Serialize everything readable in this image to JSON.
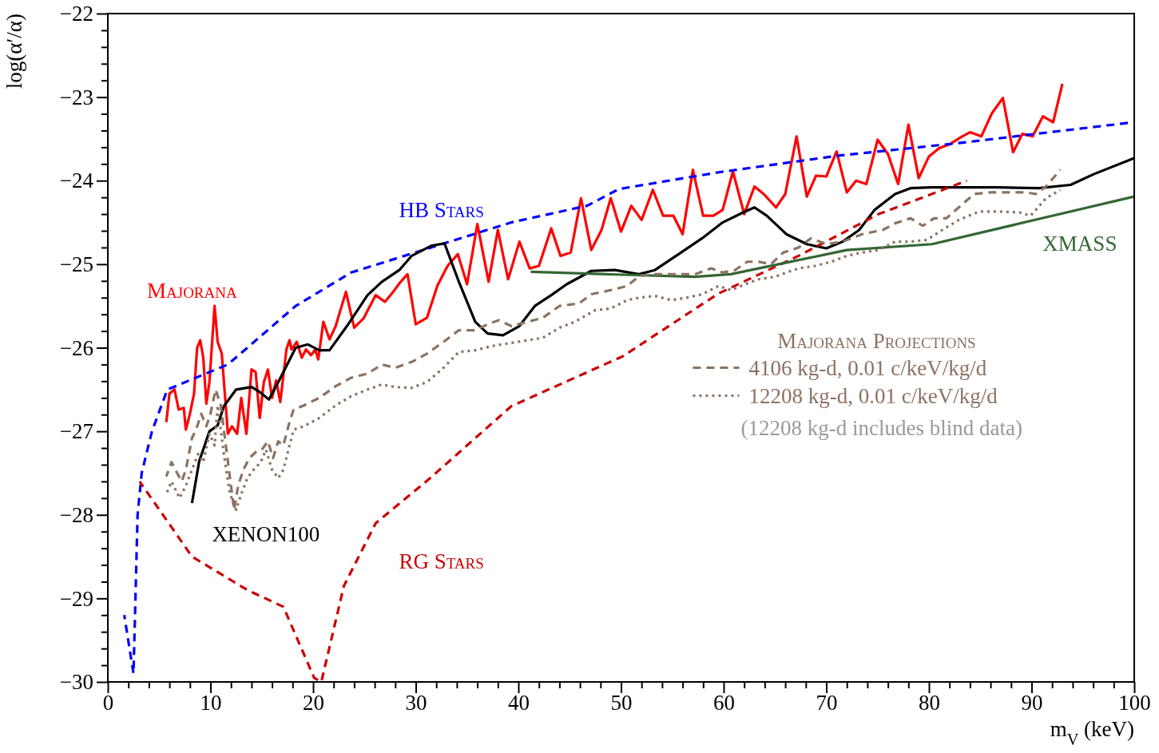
{
  "chart_data": {
    "type": "line",
    "xlabel": "m$_{V}$ (keV)",
    "ylabel": "log(α′/α)",
    "legend_title": "Majorana Projections",
    "legend": "right",
    "grid": false,
    "xlim": [
      0,
      100
    ],
    "ylim": [
      -30,
      -22
    ],
    "xticks": [
      0,
      {
        "value": 2,
        "label": null
      },
      {
        "value": 4,
        "label": null
      },
      {
        "value": 6,
        "label": null
      },
      {
        "value": 8,
        "label": null
      },
      10,
      {
        "value": 12,
        "label": null
      },
      {
        "value": 14,
        "label": null
      },
      {
        "value": 16,
        "label": null
      },
      {
        "value": 18,
        "label": null
      },
      20,
      {
        "value": 22,
        "label": null
      },
      {
        "value": 24,
        "label": null
      },
      {
        "value": 26,
        "label": null
      },
      {
        "value": 28,
        "label": null
      },
      30,
      {
        "value": 32,
        "label": null
      },
      {
        "value": 34,
        "label": null
      },
      {
        "value": 36,
        "label": null
      },
      {
        "value": 38,
        "label": null
      },
      40,
      {
        "value": 42,
        "label": null
      },
      {
        "value": 44,
        "label": null
      },
      {
        "value": 46,
        "label": null
      },
      {
        "value": 48,
        "label": null
      },
      50,
      {
        "value": 52,
        "label": null
      },
      {
        "value": 54,
        "label": null
      },
      {
        "value": 56,
        "label": null
      },
      {
        "value": 58,
        "label": null
      },
      60,
      {
        "value": 62,
        "label": null
      },
      {
        "value": 64,
        "label": null
      },
      {
        "value": 66,
        "label": null
      },
      {
        "value": 68,
        "label": null
      },
      70,
      {
        "value": 72,
        "label": null
      },
      {
        "value": 74,
        "label": null
      },
      {
        "value": 76,
        "label": null
      },
      {
        "value": 78,
        "label": null
      },
      80,
      {
        "value": 82,
        "label": null
      },
      {
        "value": 84,
        "label": null
      },
      {
        "value": 86,
        "label": null
      },
      {
        "value": 88,
        "label": null
      },
      90,
      {
        "value": 92,
        "label": null
      },
      {
        "value": 94,
        "label": null
      },
      {
        "value": 96,
        "label": null
      },
      {
        "value": 98,
        "label": null
      },
      100
    ],
    "yticks": [
      {
        "value": -30,
        "label": "−30"
      },
      {
        "value": -29.8,
        "label": null
      },
      {
        "value": -29.6,
        "label": null
      },
      {
        "value": -29.4,
        "label": null
      },
      {
        "value": -29.2,
        "label": null
      },
      {
        "value": -29,
        "label": "−29"
      },
      {
        "value": -28.8,
        "label": null
      },
      {
        "value": -28.6,
        "label": null
      },
      {
        "value": -28.4,
        "label": null
      },
      {
        "value": -28.2,
        "label": null
      },
      {
        "value": -28,
        "label": "−28"
      },
      {
        "value": -27.8,
        "label": null
      },
      {
        "value": -27.6,
        "label": null
      },
      {
        "value": -27.4,
        "label": null
      },
      {
        "value": -27.2,
        "label": null
      },
      {
        "value": -27,
        "label": "−27"
      },
      {
        "value": -26.8,
        "label": null
      },
      {
        "value": -26.6,
        "label": null
      },
      {
        "value": -26.4,
        "label": null
      },
      {
        "value": -26.2,
        "label": null
      },
      {
        "value": -26,
        "label": "−26"
      },
      {
        "value": -25.8,
        "label": null
      },
      {
        "value": -25.6,
        "label": null
      },
      {
        "value": -25.4,
        "label": null
      },
      {
        "value": -25.2,
        "label": null
      },
      {
        "value": -25,
        "label": "−25"
      },
      {
        "value": -24.8,
        "label": null
      },
      {
        "value": -24.6,
        "label": null
      },
      {
        "value": -24.4,
        "label": null
      },
      {
        "value": -24.2,
        "label": null
      },
      {
        "value": -24,
        "label": "−24"
      },
      {
        "value": -23.8,
        "label": null
      },
      {
        "value": -23.6,
        "label": null
      },
      {
        "value": -23.4,
        "label": null
      },
      {
        "value": -23.2,
        "label": null
      },
      {
        "value": -23,
        "label": "−23"
      },
      {
        "value": -22.8,
        "label": null
      },
      {
        "value": -22.6,
        "label": null
      },
      {
        "value": -22.4,
        "label": null
      },
      {
        "value": -22.2,
        "label": null
      },
      {
        "value": -22,
        "label": "−22"
      }
    ],
    "series": [
      {
        "name": "Majorana",
        "color": "#ff0000",
        "line_style": "solid",
        "x": [
          5.7,
          6.0,
          6.5,
          6.9,
          7.4,
          7.6,
          8.0,
          8.4,
          8.7,
          9.0,
          9.3,
          9.6,
          9.9,
          10.4,
          10.7,
          11.1,
          11.7,
          12.1,
          12.6,
          13.0,
          13.5,
          14.0,
          14.4,
          14.8,
          15.2,
          15.6,
          16.0,
          16.4,
          16.8,
          17.4,
          17.7,
          17.9,
          18.4,
          18.9,
          19.3,
          19.8,
          20.2,
          20.5,
          21.0,
          21.6,
          22.2,
          23.2,
          24.0,
          24.9,
          26.1,
          27.0,
          27.8,
          28.4,
          29.2,
          30.0,
          31.1,
          32.1,
          33.1,
          34.1,
          35.0,
          36.0,
          37.1,
          38.0,
          39.0,
          40.1,
          41.1,
          42.0,
          43.2,
          44.1,
          45.1,
          46.1,
          47.1,
          48.1,
          49.0,
          50.0,
          51.0,
          52.0,
          53.1,
          54.1,
          55.1,
          56.0,
          57.0,
          58.0,
          59.0,
          59.9,
          60.9,
          62.0,
          63.0,
          63.9,
          65.1,
          66.0,
          67.1,
          68.1,
          69.0,
          70.0,
          71.0,
          72.0,
          72.9,
          73.9,
          75.0,
          76.0,
          77.0,
          78.0,
          79.0,
          80.0,
          81.0,
          82.1,
          83.1,
          84.0,
          85.1,
          86.1,
          87.2,
          88.2,
          89.1,
          90.1,
          91.1,
          92.1,
          93.0
        ],
        "values": [
          -26.89,
          -26.55,
          -26.5,
          -26.74,
          -26.72,
          -26.98,
          -26.79,
          -26.55,
          -26.0,
          -25.91,
          -26.12,
          -26.67,
          -26.41,
          -25.5,
          -25.93,
          -26.07,
          -27.03,
          -26.94,
          -27.03,
          -26.6,
          -27.03,
          -26.26,
          -26.29,
          -26.84,
          -26.41,
          -26.26,
          -26.6,
          -26.39,
          -26.65,
          -26.02,
          -25.91,
          -26.02,
          -25.93,
          -26.12,
          -26.02,
          -26.09,
          -26.02,
          -26.14,
          -25.69,
          -25.9,
          -25.74,
          -25.33,
          -25.76,
          -25.65,
          -25.37,
          -25.45,
          -25.33,
          -25.23,
          -25.12,
          -25.72,
          -25.64,
          -25.26,
          -25.02,
          -24.88,
          -25.24,
          -24.52,
          -25.21,
          -24.59,
          -25.18,
          -24.73,
          -25.05,
          -25.02,
          -24.57,
          -24.9,
          -24.86,
          -24.21,
          -24.83,
          -24.59,
          -24.21,
          -24.61,
          -24.3,
          -24.47,
          -24.11,
          -24.42,
          -24.42,
          -24.64,
          -23.87,
          -24.42,
          -24.42,
          -24.35,
          -23.89,
          -24.4,
          -24.07,
          -24.16,
          -24.32,
          -24.16,
          -23.47,
          -24.19,
          -23.94,
          -23.95,
          -23.65,
          -24.14,
          -24.0,
          -24.04,
          -23.51,
          -23.68,
          -24.04,
          -23.33,
          -23.97,
          -23.71,
          -23.61,
          -23.56,
          -23.48,
          -23.42,
          -23.47,
          -23.2,
          -23.01,
          -23.66,
          -23.44,
          -23.47,
          -23.23,
          -23.3,
          -22.84
        ]
      },
      {
        "name": "HB Stars",
        "color": "#0000ff",
        "line_style": "dashed",
        "x": [
          1.6,
          2.5,
          2.9,
          3.3,
          4.3,
          5.8,
          11.7,
          18.3,
          23.7,
          31.5,
          39.3,
          46.7,
          49.8,
          59.5,
          71.2,
          82.9,
          100
        ],
        "values": [
          -29.2,
          -29.9,
          -28.0,
          -27.5,
          -27.0,
          -26.5,
          -26.2,
          -25.5,
          -25.1,
          -24.8,
          -24.5,
          -24.3,
          -24.1,
          -23.9,
          -23.7,
          -23.55,
          -23.3
        ]
      },
      {
        "name": "XENON100",
        "color": "#000000",
        "line_style": "solid",
        "x": [
          8.2,
          8.9,
          9.9,
          10.7,
          11.3,
          12.5,
          14.0,
          14.8,
          15.7,
          16.7,
          18.3,
          19.5,
          20.6,
          21.6,
          23.3,
          25.3,
          26.7,
          28.4,
          29.6,
          31.5,
          32.8,
          34.2,
          35.8,
          37.0,
          38.5,
          40.1,
          41.6,
          43.2,
          44.7,
          47.1,
          49.4,
          51.7,
          53.3,
          55.6,
          57.9,
          59.9,
          61.9,
          63.0,
          64.2,
          66.1,
          68.1,
          70.0,
          71.6,
          73.2,
          74.7,
          76.7,
          78.2,
          80.2,
          82.9,
          86.8,
          90.7,
          93.8,
          96.1,
          100
        ],
        "values": [
          -27.86,
          -27.36,
          -27.0,
          -26.93,
          -26.7,
          -26.5,
          -26.47,
          -26.53,
          -26.62,
          -26.39,
          -26.0,
          -25.96,
          -26.03,
          -26.03,
          -25.74,
          -25.37,
          -25.21,
          -25.07,
          -24.9,
          -24.78,
          -24.75,
          -25.21,
          -25.69,
          -25.83,
          -25.85,
          -25.74,
          -25.5,
          -25.37,
          -25.24,
          -25.08,
          -25.07,
          -25.12,
          -25.07,
          -24.88,
          -24.69,
          -24.5,
          -24.38,
          -24.32,
          -24.42,
          -24.64,
          -24.76,
          -24.81,
          -24.73,
          -24.59,
          -24.35,
          -24.16,
          -24.09,
          -24.08,
          -24.08,
          -24.08,
          -24.09,
          -24.05,
          -23.92,
          -23.73
        ]
      },
      {
        "name": "RG Stars",
        "color": "#cc0000",
        "line_style": "dashed",
        "x": [
          3.1,
          8.2,
          13.6,
          17.1,
          20.1,
          20.8,
          23.0,
          26.1,
          31.5,
          39.3,
          50.2,
          59.5,
          67.3,
          75.1,
          83.7
        ],
        "values": [
          -27.6,
          -28.5,
          -28.9,
          -29.1,
          -29.95,
          -30.0,
          -28.85,
          -28.1,
          -27.55,
          -26.7,
          -26.1,
          -25.35,
          -24.9,
          -24.4,
          -24.0
        ]
      },
      {
        "name": "XMASS",
        "color": "#336633",
        "line_style": "solid",
        "x": [
          41.2,
          48.6,
          57.2,
          60.7,
          63.4,
          72.0,
          80.3,
          100
        ],
        "values": [
          -25.09,
          -25.12,
          -25.15,
          -25.12,
          -25.05,
          -24.83,
          -24.76,
          -24.19
        ]
      },
      {
        "name": "4106 kg-d, 0.01 c/keV/kg/d",
        "color": "#8c7261",
        "line_style": "dashed",
        "x": [
          5.7,
          6.2,
          6.8,
          7.2,
          7.6,
          8.2,
          8.6,
          9.1,
          9.6,
          10.0,
          10.5,
          11.0,
          11.3,
          11.8,
          12.3,
          12.7,
          13.2,
          13.8,
          14.4,
          15.0,
          15.6,
          16.1,
          16.6,
          17.1,
          17.7,
          18.1,
          19.1,
          20.6,
          22.2,
          23.7,
          25.3,
          26.7,
          28.0,
          29.6,
          31.1,
          32.7,
          34.2,
          35.8,
          37.0,
          38.1,
          39.3,
          40.9,
          42.4,
          44.0,
          45.9,
          47.1,
          49.0,
          50.6,
          51.8,
          53.3,
          54.9,
          56.0,
          57.2,
          58.8,
          59.9,
          61.1,
          62.3,
          63.4,
          64.6,
          65.8,
          67.3,
          68.5,
          70.0,
          71.6,
          73.5,
          75.5,
          76.7,
          78.2,
          79.4,
          80.5,
          81.7,
          82.9,
          84.4,
          86.0,
          87.5,
          89.5,
          90.4,
          91.4,
          92.8
        ],
        "values": [
          -27.54,
          -27.37,
          -27.51,
          -27.6,
          -27.46,
          -27.08,
          -26.98,
          -26.79,
          -26.94,
          -26.79,
          -26.5,
          -26.69,
          -26.98,
          -27.46,
          -27.94,
          -27.65,
          -27.46,
          -27.32,
          -27.25,
          -27.22,
          -27.12,
          -27.32,
          -27.12,
          -27.17,
          -26.89,
          -26.74,
          -26.69,
          -26.6,
          -26.46,
          -26.36,
          -26.31,
          -26.2,
          -26.24,
          -26.17,
          -26.07,
          -25.93,
          -25.79,
          -25.79,
          -25.72,
          -25.67,
          -25.74,
          -25.69,
          -25.64,
          -25.5,
          -25.47,
          -25.36,
          -25.31,
          -25.26,
          -25.14,
          -25.12,
          -25.12,
          -25.12,
          -25.12,
          -25.05,
          -25.1,
          -25.07,
          -24.97,
          -24.97,
          -25.0,
          -24.86,
          -24.8,
          -24.69,
          -24.76,
          -24.73,
          -24.64,
          -24.59,
          -24.51,
          -24.45,
          -24.54,
          -24.45,
          -24.45,
          -24.32,
          -24.16,
          -24.14,
          -24.14,
          -24.14,
          -24.16,
          -24.07,
          -23.87
        ]
      },
      {
        "name": "12208 kg-d, 0.01 c/keV/kg/d",
        "color": "#8c7261",
        "line_style": "dotted",
        "x": [
          5.7,
          6.2,
          7.0,
          7.6,
          8.2,
          8.8,
          9.3,
          9.9,
          10.4,
          10.7,
          11.3,
          11.9,
          12.5,
          13.0,
          13.6,
          14.2,
          14.9,
          15.4,
          16.0,
          16.6,
          17.1,
          17.7,
          18.1,
          19.1,
          20.6,
          22.2,
          23.7,
          25.3,
          26.7,
          28.0,
          29.6,
          31.1,
          32.7,
          34.2,
          35.8,
          37.4,
          38.9,
          40.9,
          42.4,
          44.0,
          45.5,
          47.5,
          49.0,
          50.6,
          51.8,
          53.3,
          54.9,
          56.4,
          57.9,
          59.5,
          60.7,
          62.3,
          63.4,
          65.0,
          66.1,
          67.3,
          68.9,
          70.5,
          72.0,
          73.5,
          75.1,
          76.7,
          78.2,
          79.8,
          81.3,
          82.9,
          84.9,
          86.8,
          88.8,
          89.9,
          91.4,
          92.8
        ],
        "values": [
          -27.75,
          -27.6,
          -27.8,
          -27.65,
          -27.46,
          -27.27,
          -27.37,
          -27.03,
          -27.17,
          -26.69,
          -27.27,
          -27.75,
          -27.94,
          -27.75,
          -27.56,
          -27.46,
          -27.37,
          -27.22,
          -27.46,
          -27.56,
          -27.46,
          -27.17,
          -26.98,
          -26.94,
          -26.84,
          -26.69,
          -26.58,
          -26.5,
          -26.44,
          -26.47,
          -26.48,
          -26.41,
          -26.24,
          -26.05,
          -26.03,
          -25.98,
          -25.95,
          -25.91,
          -25.88,
          -25.76,
          -25.69,
          -25.55,
          -25.53,
          -25.43,
          -25.4,
          -25.38,
          -25.43,
          -25.4,
          -25.36,
          -25.26,
          -25.31,
          -25.23,
          -25.18,
          -25.15,
          -25.1,
          -25.05,
          -25.02,
          -24.97,
          -24.9,
          -24.86,
          -24.83,
          -24.73,
          -24.73,
          -24.71,
          -24.59,
          -24.47,
          -24.37,
          -24.37,
          -24.38,
          -24.42,
          -24.21,
          -24.11
        ]
      }
    ],
    "annotations": [
      "(12208 kg-d includes blind data)"
    ]
  }
}
